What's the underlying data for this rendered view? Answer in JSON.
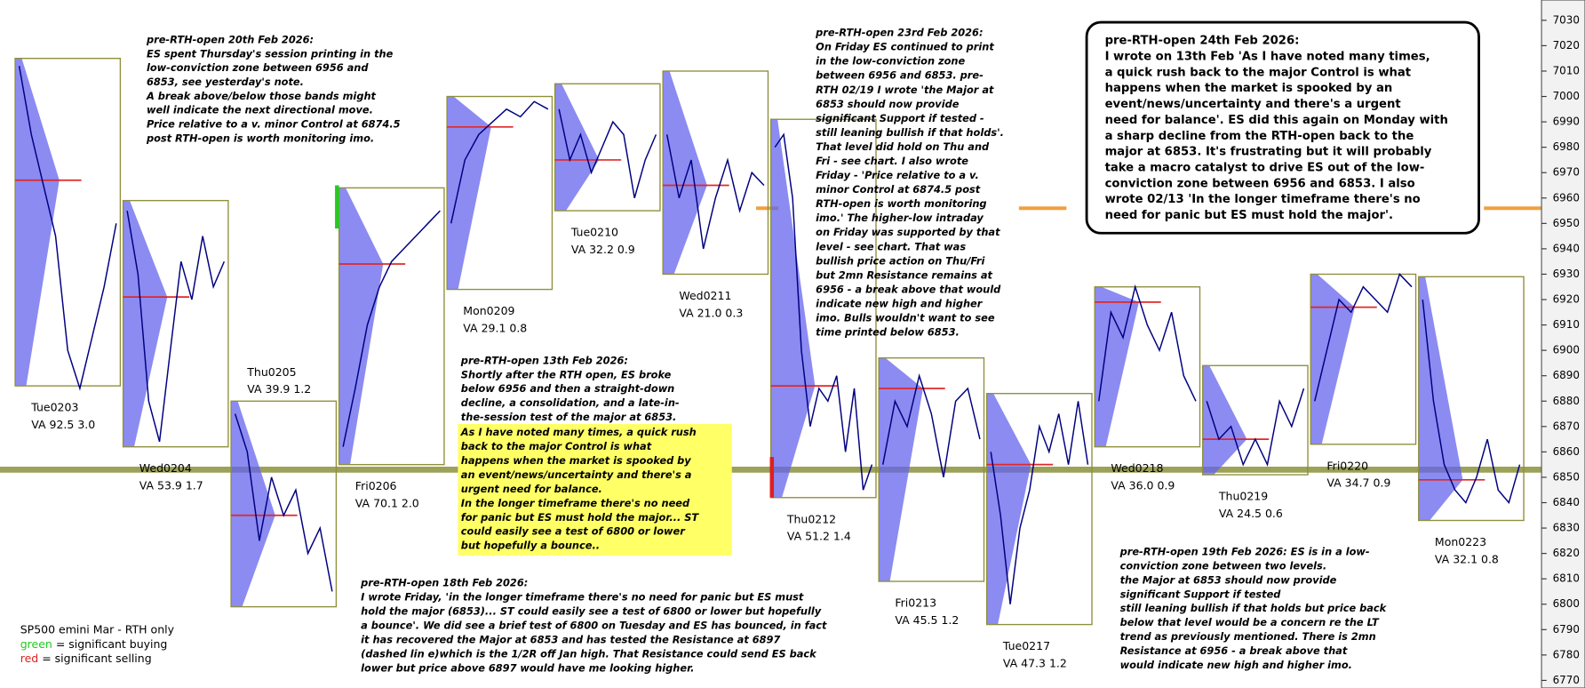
{
  "chart_data": {
    "type": "market-profile",
    "ylim": [
      6767,
      7038
    ],
    "yticks": [
      6770,
      6780,
      6790,
      6800,
      6810,
      6820,
      6830,
      6840,
      6850,
      6860,
      6870,
      6880,
      6890,
      6900,
      6910,
      6920,
      6930,
      6940,
      6950,
      6960,
      6970,
      6980,
      6990,
      7000,
      7010,
      7020,
      7030
    ],
    "major": 6853,
    "major_color": "#9ca158",
    "resistance": 6956,
    "resistance_color": "#f0a040",
    "price_color": "#000080",
    "box_color": "#8f8f3c",
    "poc_color": "#e02828",
    "profile_color": "#6464ee",
    "sessions": [
      {
        "label": "Tue0203",
        "va_label": "VA 92.5  3.0",
        "high": 7015,
        "low": 6886,
        "poc": 6967,
        "prices": [
          7012,
          6985,
          6965,
          6945,
          6900,
          6885,
          6905,
          6925,
          6950
        ]
      },
      {
        "label": "Wed0204",
        "va_label": "VA 53.9  1.7",
        "high": 6959,
        "low": 6862,
        "poc": 6921,
        "prices": [
          6955,
          6930,
          6880,
          6864,
          6900,
          6935,
          6920,
          6945,
          6925,
          6935
        ]
      },
      {
        "label": "Thu0205",
        "va_label": "VA 39.9  1.2",
        "high": 6880,
        "low": 6799,
        "poc": 6835,
        "label_pos": "top",
        "prices": [
          6875,
          6860,
          6825,
          6850,
          6835,
          6845,
          6820,
          6830,
          6805
        ]
      },
      {
        "label": "Fri0206",
        "va_label": "VA 70.1  2.0",
        "high": 6964,
        "low": 6855,
        "poc": 6934,
        "buying": [
          6948,
          6965
        ],
        "prices": [
          6862,
          6885,
          6910,
          6925,
          6935,
          6940,
          6945,
          6950,
          6955
        ]
      },
      {
        "label": "Mon0209",
        "va_label": "VA 29.1  0.8",
        "high": 7000,
        "low": 6924,
        "poc": 6988,
        "prices": [
          6950,
          6975,
          6985,
          6990,
          6995,
          6992,
          6998,
          6995
        ]
      },
      {
        "label": "Tue0210",
        "va_label": "VA 32.2  0.9",
        "high": 7005,
        "low": 6955,
        "poc": 6975,
        "prices": [
          6995,
          6975,
          6985,
          6970,
          6980,
          6990,
          6985,
          6960,
          6975,
          6985
        ]
      },
      {
        "label": "Wed0211",
        "va_label": "VA 21.0  0.3",
        "high": 7010,
        "low": 6930,
        "poc": 6965,
        "prices": [
          6985,
          6960,
          6975,
          6940,
          6960,
          6975,
          6955,
          6970,
          6965
        ]
      },
      {
        "label": "Thu0212",
        "va_label": "VA 51.2  1.4",
        "high": 6991,
        "low": 6842,
        "poc": 6886,
        "selling": [
          6842,
          6858
        ],
        "prices": [
          6980,
          6985,
          6960,
          6900,
          6870,
          6885,
          6880,
          6890,
          6860,
          6885,
          6845,
          6855
        ]
      },
      {
        "label": "Fri0213",
        "va_label": "VA 45.5  1.2",
        "high": 6897,
        "low": 6809,
        "poc": 6885,
        "prices": [
          6855,
          6880,
          6870,
          6890,
          6875,
          6850,
          6880,
          6885,
          6865
        ]
      },
      {
        "label": "Tue0217",
        "va_label": "VA 47.3  1.2",
        "high": 6883,
        "low": 6792,
        "poc": 6855,
        "prices": [
          6860,
          6835,
          6800,
          6830,
          6845,
          6870,
          6860,
          6875,
          6855,
          6880,
          6855
        ]
      },
      {
        "label": "Wed0218",
        "va_label": "VA 36.0  0.9",
        "high": 6925,
        "low": 6862,
        "poc": 6919,
        "prices": [
          6880,
          6915,
          6905,
          6925,
          6910,
          6900,
          6915,
          6890,
          6880
        ]
      },
      {
        "label": "Thu0219",
        "va_label": "VA 24.5  0.6",
        "high": 6894,
        "low": 6851,
        "poc": 6865,
        "prices": [
          6880,
          6865,
          6870,
          6855,
          6865,
          6855,
          6880,
          6870,
          6885
        ]
      },
      {
        "label": "Fri0220",
        "va_label": "VA 34.7  0.9",
        "high": 6930,
        "low": 6863,
        "poc": 6917,
        "prices": [
          6880,
          6900,
          6920,
          6915,
          6925,
          6920,
          6915,
          6930,
          6925
        ]
      },
      {
        "label": "Mon0223",
        "va_label": "VA 32.1  0.8",
        "high": 6929,
        "low": 6833,
        "poc": 6849,
        "prices": [
          6920,
          6880,
          6855,
          6845,
          6840,
          6850,
          6865,
          6845,
          6840,
          6855
        ]
      }
    ],
    "annotations": [
      {
        "lines": [
          "pre-RTH-open 20th Feb 2026:",
          "ES spent Thursday's session printing in the",
          "low-conviction zone between 6956 and",
          "6853, see yesterday's note.",
          "A break above/below those bands might",
          "well indicate the next directional move.",
          "Price relative to a v. minor Control at 6874.5",
          "post RTH-open is worth monitoring imo."
        ]
      },
      {
        "lines": [
          "pre-RTH-open 23rd Feb 2026:",
          "On Friday ES continued to print",
          "in the low-conviction zone",
          "between 6956 and 6853. pre-",
          "RTH 02/19 I wrote 'the Major at",
          "6853 should now provide",
          "significant Support if tested -",
          "still leaning bullish if that holds'.",
          "That level did hold on Thu and",
          "Fri - see chart. I also wrote",
          "Friday - 'Price relative to a v.",
          "minor Control at 6874.5 post",
          "RTH-open is worth monitoring",
          "imo.' The higher-low intraday",
          "on Friday was supported by that",
          "level - see chart. That was",
          "bullish price action on Thu/Fri",
          "but 2mn Resistance remains at",
          "6956 - a break above that would",
          "indicate new high and higher",
          "imo. Bulls wouldn't want to see",
          "time printed below 6853."
        ]
      },
      {
        "lines": [
          "pre-RTH-open 13th Feb 2026:",
          "Shortly after the RTH open, ES broke",
          "below 6956 and then a straight-down",
          "decline, a consolidation, and a late-in-",
          "the-session test of the major at 6853."
        ]
      },
      {
        "background": "#ffff66",
        "lines": [
          "As I have noted many times, a quick rush",
          "back to the major Control is what",
          "happens when the market is spooked by",
          "an event/news/uncertainty and there's a",
          "urgent need for balance.",
          "In the longer timeframe there's no need",
          "for panic but ES must hold the major... ST",
          "could easily see a test of 6800 or lower",
          "but hopefully a bounce.."
        ]
      },
      {
        "lines": [
          "pre-RTH-open 18th Feb 2026:",
          "I wrote Friday, 'in the longer timeframe there's no need for panic but ES must",
          "hold the major (6853)... ST could easily see a test of 6800 or lower but hopefully",
          "a bounce'. We did see a brief test of 6800 on Tuesday and ES has bounced, in fact",
          "it has recovered the Major at 6853 and has tested the Resistance at 6897",
          "(dashed lin e)which is the 1/2R off Jan high. That Resistance could send ES back",
          "lower but price above 6897 would have me looking higher."
        ]
      },
      {
        "lines": [
          "pre-RTH-open 19th Feb 2026: ES is in a low-",
          "conviction zone between two levels.",
          "the Major at 6853 should now provide",
          "significant Support if tested",
          "still leaning bullish if that holds but price back",
          "below that level would be a concern re the LT",
          "trend as previously mentioned. There is 2mn",
          "Resistance at 6956 - a break above that",
          "would indicate new high and higher imo."
        ]
      },
      {
        "boxed": true,
        "lines": [
          "pre-RTH-open 24th Feb 2026:",
          "I wrote on 13th Feb 'As I have noted many times,",
          "a quick rush back to the major Control is what",
          "happens when the market is spooked by an",
          "event/news/uncertainty and there's a urgent",
          "need for balance'. ES did this again on Monday with",
          "a sharp decline from the RTH-open back to the",
          "major at 6853. It's frustrating but it will probably",
          "take a macro catalyst to drive ES out of the low-",
          "conviction zone between 6956 and 6853. I also",
          "wrote 02/13 'In the longer timeframe there's no",
          "need for panic but ES must hold the major'."
        ]
      }
    ],
    "legend": {
      "title": "SP500 emini  Mar - RTH only",
      "items": [
        {
          "key": "green",
          "text": " = significant buying",
          "color": "#22cc22"
        },
        {
          "key": "red",
          "text": " = significant selling",
          "color": "#dd2020"
        }
      ]
    }
  }
}
